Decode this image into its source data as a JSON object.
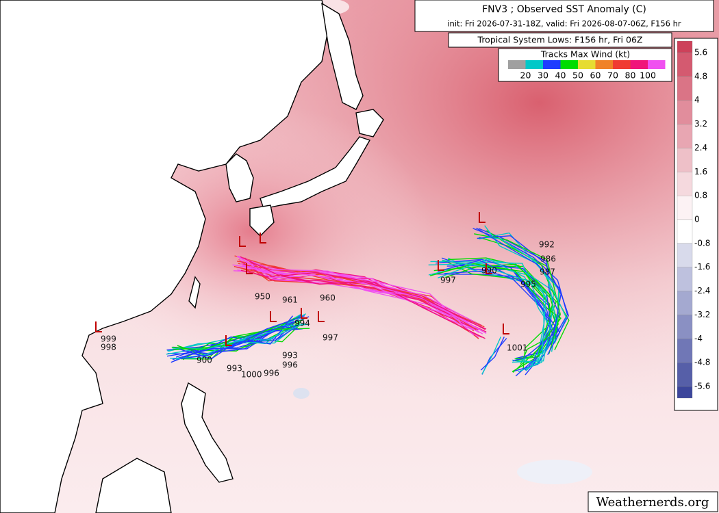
{
  "header": {
    "title": "FNV3 ; Observed SST Anomaly (C)",
    "subtitle": "init: Fri 2026-07-31-18Z, valid: Fri 2026-08-07-06Z, F156 hr"
  },
  "lows_legend": {
    "title": "Tropical System Lows: F156 hr, Fri 06Z"
  },
  "wind_legend": {
    "title": "Tracks Max Wind (kt)",
    "labels": [
      20,
      30,
      40,
      50,
      60,
      70,
      80,
      100
    ]
  },
  "colorbar": {
    "labels": [
      5.6,
      4.8,
      4,
      3.2,
      2.4,
      1.6,
      0.8,
      0,
      -0.8,
      -1.6,
      -2.4,
      -3.2,
      -4,
      -4.8,
      -5.6
    ]
  },
  "pressure_labels": [
    "997",
    "990",
    "995",
    "987",
    "992",
    "986",
    "1001",
    "997",
    "994",
    "950",
    "961",
    "960",
    "999",
    "998",
    "900",
    "993",
    "1000",
    "996",
    "996",
    "993"
  ],
  "watermark": "Weathernerds.org"
}
